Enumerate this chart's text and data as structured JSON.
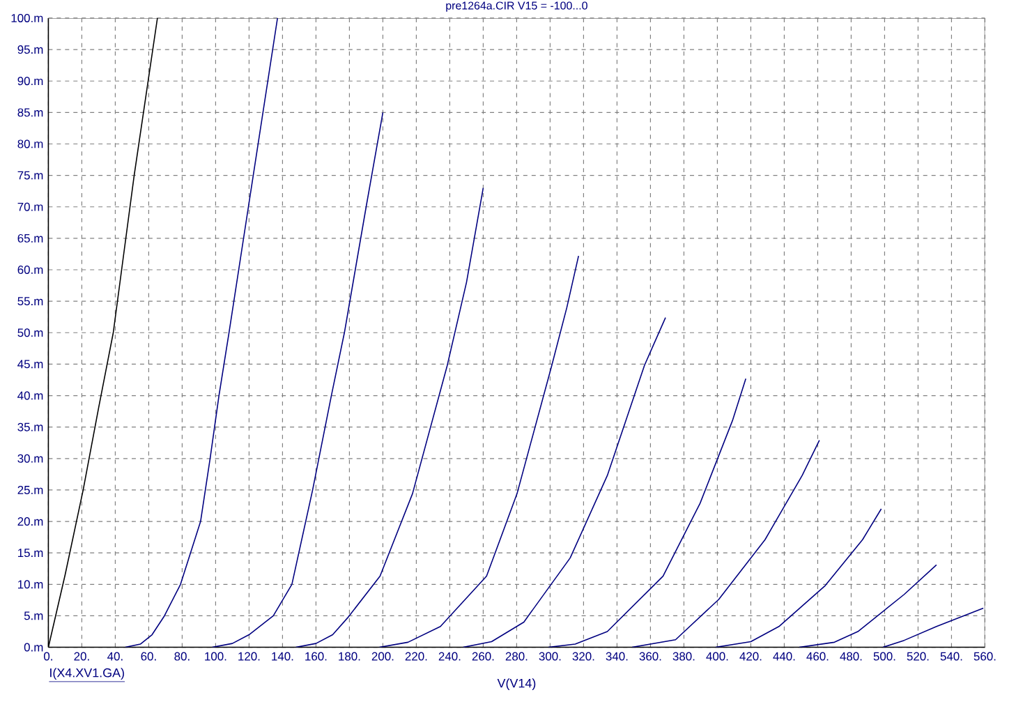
{
  "chart_data": {
    "type": "line",
    "title": "pre1264a.CIR V15 = -100...0",
    "xlabel": "V(V14)",
    "annotations": [
      "I(X4.XV1.GA)"
    ],
    "xlim": [
      0,
      560
    ],
    "ylim": [
      0,
      100
    ],
    "xticks": [
      {
        "value": 0,
        "label": "0."
      },
      {
        "value": 20,
        "label": "20."
      },
      {
        "value": 40,
        "label": "40."
      },
      {
        "value": 60,
        "label": "60."
      },
      {
        "value": 80,
        "label": "80."
      },
      {
        "value": 100,
        "label": "100."
      },
      {
        "value": 120,
        "label": "120."
      },
      {
        "value": 140,
        "label": "140."
      },
      {
        "value": 160,
        "label": "160."
      },
      {
        "value": 180,
        "label": "180."
      },
      {
        "value": 200,
        "label": "200."
      },
      {
        "value": 220,
        "label": "220."
      },
      {
        "value": 240,
        "label": "240."
      },
      {
        "value": 260,
        "label": "260."
      },
      {
        "value": 280,
        "label": "280."
      },
      {
        "value": 300,
        "label": "300."
      },
      {
        "value": 320,
        "label": "320."
      },
      {
        "value": 340,
        "label": "340."
      },
      {
        "value": 360,
        "label": "360."
      },
      {
        "value": 380,
        "label": "380."
      },
      {
        "value": 400,
        "label": "400."
      },
      {
        "value": 420,
        "label": "420."
      },
      {
        "value": 440,
        "label": "440."
      },
      {
        "value": 460,
        "label": "460."
      },
      {
        "value": 480,
        "label": "480."
      },
      {
        "value": 500,
        "label": "500."
      },
      {
        "value": 520,
        "label": "520."
      },
      {
        "value": 540,
        "label": "540."
      },
      {
        "value": 560,
        "label": "560."
      }
    ],
    "yticks": [
      {
        "value": 0,
        "label": "0.m"
      },
      {
        "value": 5,
        "label": "5.m"
      },
      {
        "value": 10,
        "label": "10.m"
      },
      {
        "value": 15,
        "label": "15.m"
      },
      {
        "value": 20,
        "label": "20.m"
      },
      {
        "value": 25,
        "label": "25.m"
      },
      {
        "value": 30,
        "label": "30.m"
      },
      {
        "value": 35,
        "label": "35.m"
      },
      {
        "value": 40,
        "label": "40.m"
      },
      {
        "value": 45,
        "label": "45.m"
      },
      {
        "value": 50,
        "label": "50.m"
      },
      {
        "value": 55,
        "label": "55.m"
      },
      {
        "value": 60,
        "label": "60.m"
      },
      {
        "value": 65,
        "label": "65.m"
      },
      {
        "value": 70,
        "label": "70.m"
      },
      {
        "value": 75,
        "label": "75.m"
      },
      {
        "value": 80,
        "label": "80.m"
      },
      {
        "value": 85,
        "label": "85.m"
      },
      {
        "value": 90,
        "label": "90.m"
      },
      {
        "value": 95,
        "label": "95.m"
      },
      {
        "value": 100,
        "label": "100.m"
      }
    ],
    "grid": true,
    "legend": false,
    "marker": "none",
    "line_style": "solid",
    "series": [
      {
        "color": "#000000",
        "x": [
          0,
          10,
          20.8,
          30,
          38.8,
          51.3,
          65.2
        ],
        "values": [
          0,
          11.5,
          25,
          38,
          50,
          75,
          100
        ]
      },
      {
        "color": "#000080",
        "x": [
          46,
          55,
          62,
          69.4,
          79,
          91,
          96.7,
          102,
          108,
          119.6,
          137
        ],
        "values": [
          0,
          0.5,
          2,
          5,
          10,
          20,
          30,
          40,
          50,
          70,
          100
        ]
      },
      {
        "color": "#000080",
        "x": [
          98,
          110,
          120,
          134.5,
          145.6,
          158,
          169.2,
          177,
          190,
          200
        ],
        "values": [
          0,
          0.6,
          2,
          5,
          10,
          25,
          40,
          50,
          70,
          85
        ]
      },
      {
        "color": "#000080",
        "x": [
          148,
          160,
          170,
          179,
          198.3,
          217.7,
          238.5,
          250,
          260
        ],
        "values": [
          0,
          0.6,
          2,
          4.7,
          11.3,
          24.4,
          44.8,
          58,
          73
        ]
      },
      {
        "color": "#000080",
        "x": [
          198,
          215,
          234.4,
          262,
          280.2,
          301,
          310,
          317
        ],
        "values": [
          0,
          0.8,
          3.3,
          11.3,
          24.4,
          44.8,
          54,
          62.2
        ]
      },
      {
        "color": "#000080",
        "x": [
          248,
          265,
          284.3,
          312,
          334.2,
          356.4,
          369
        ],
        "values": [
          0,
          0.9,
          4,
          14.2,
          27.3,
          44.8,
          52.4
        ]
      },
      {
        "color": "#000080",
        "x": [
          299,
          315,
          334.2,
          367.5,
          389.7,
          409,
          417
        ],
        "values": [
          0,
          0.5,
          2.5,
          11.3,
          22.9,
          36,
          42.7
        ]
      },
      {
        "color": "#000080",
        "x": [
          349,
          375,
          400.8,
          428.5,
          450.7,
          461
        ],
        "values": [
          0,
          1.2,
          7.6,
          17.1,
          27.3,
          32.9
        ]
      },
      {
        "color": "#000080",
        "x": [
          399,
          420,
          436.8,
          464.5,
          486.8,
          498
        ],
        "values": [
          0,
          0.9,
          3.3,
          9.8,
          17.1,
          22
        ]
      },
      {
        "color": "#000080",
        "x": [
          449,
          470,
          484,
          511.7,
          531
        ],
        "values": [
          0,
          0.8,
          2.5,
          8.4,
          13.1
        ]
      },
      {
        "color": "#000080",
        "x": [
          499,
          511.7,
          531,
          559
        ],
        "values": [
          0,
          1.1,
          3.3,
          6.2
        ]
      }
    ]
  }
}
